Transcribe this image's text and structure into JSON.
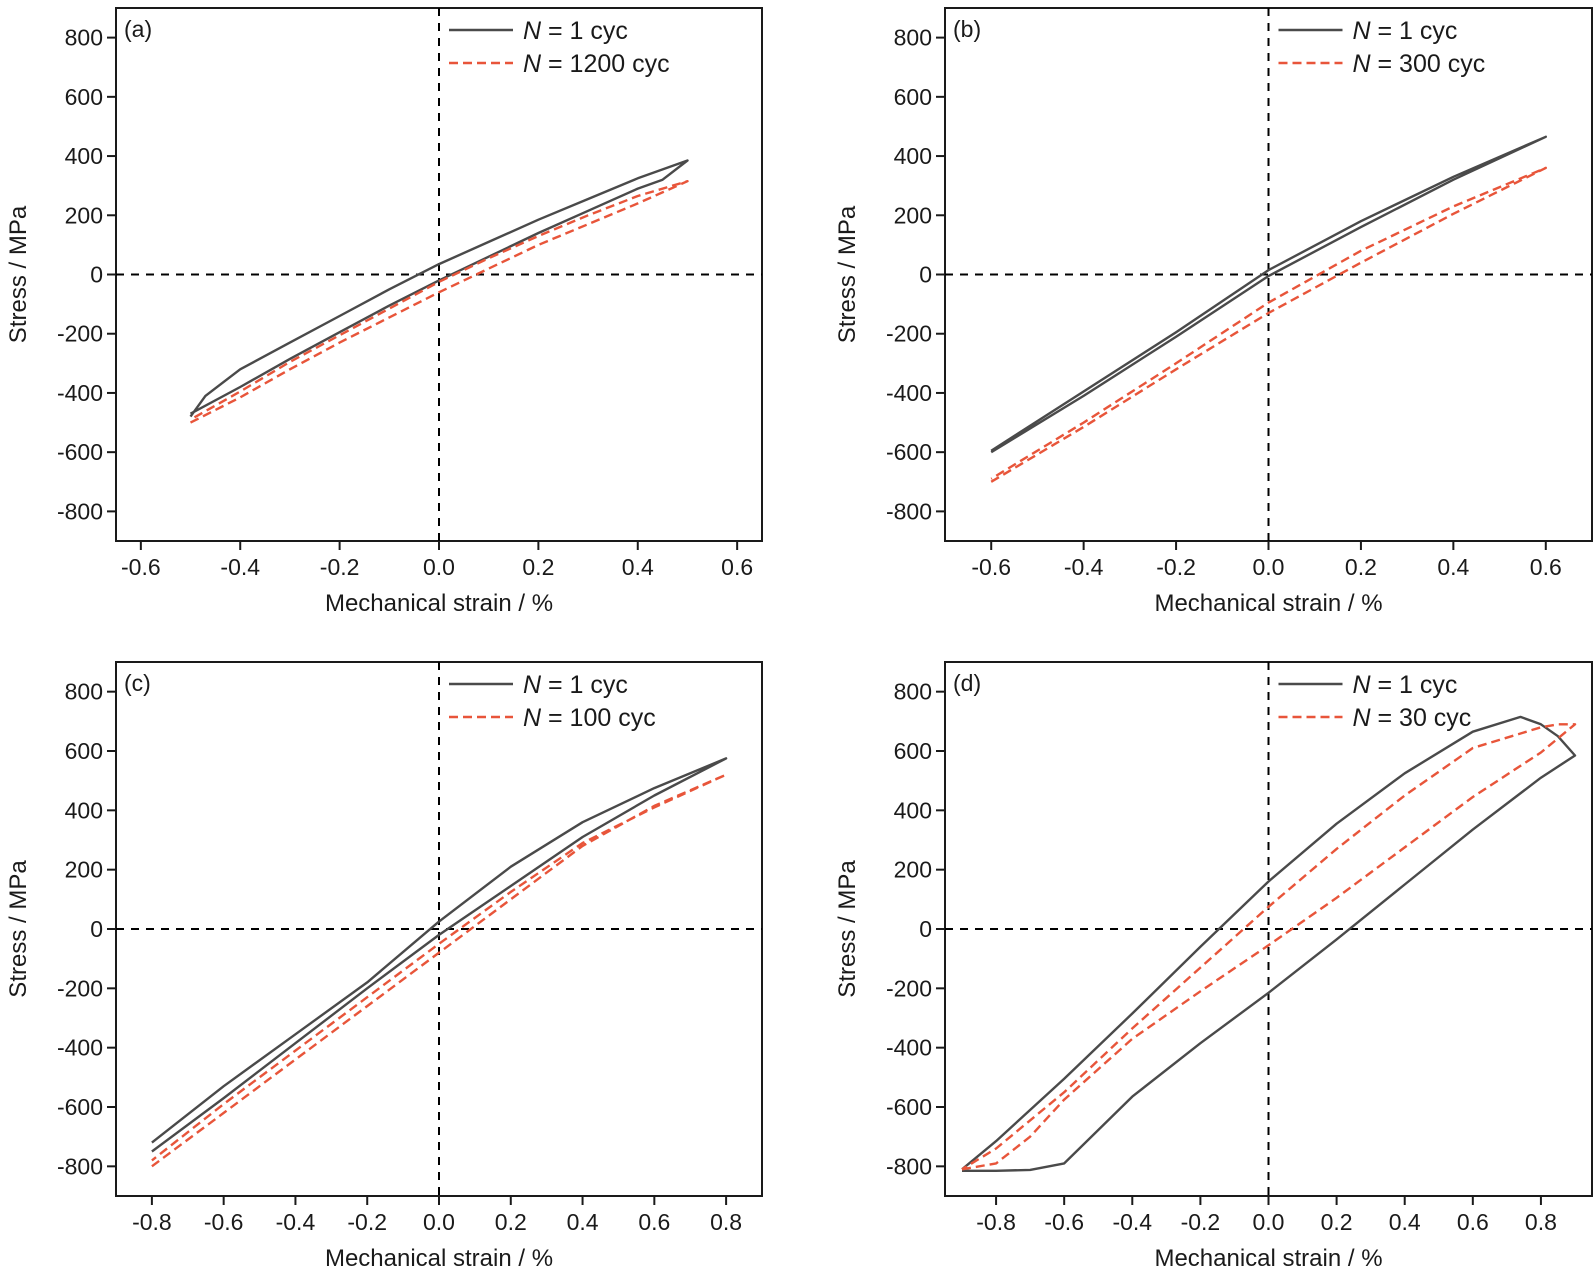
{
  "colors": {
    "cycle1": "#4a4a4a",
    "cycleN": "#e8553a",
    "axis": "#1a1a1a",
    "zero_line": "#000000"
  },
  "legend_symbol": "N",
  "chart_data": [
    {
      "type": "line",
      "panel_label": "(a)",
      "xlabel": "Mechanical strain / %",
      "ylabel": "Stress / MPa",
      "xlim": [
        -0.65,
        0.65
      ],
      "ylim": [
        -900,
        900
      ],
      "xticks": [
        "-0.6",
        "-0.4",
        "-0.2",
        "0.0",
        "0.2",
        "0.4",
        "0.6"
      ],
      "yticks": [
        "800",
        "600",
        "400",
        "200",
        "0",
        "-200",
        "-400",
        "-600",
        "-800"
      ],
      "grid": false,
      "legend": "top-right",
      "series": [
        {
          "name": "1 cyc",
          "style": "solid",
          "x": [
            -0.5,
            -0.4,
            -0.3,
            -0.2,
            -0.1,
            0.0,
            0.1,
            0.2,
            0.3,
            0.4,
            0.45,
            0.5,
            0.4,
            0.3,
            0.2,
            0.1,
            0.0,
            -0.1,
            -0.2,
            -0.3,
            -0.4,
            -0.47,
            -0.5
          ],
          "y": [
            -470,
            -380,
            -285,
            -195,
            -105,
            -20,
            60,
            140,
            215,
            290,
            320,
            385,
            325,
            255,
            185,
            110,
            35,
            -50,
            -140,
            -230,
            -320,
            -410,
            -480
          ]
        },
        {
          "name": "1200 cyc",
          "style": "dashed",
          "x": [
            -0.5,
            -0.4,
            -0.3,
            -0.2,
            -0.1,
            0.0,
            0.1,
            0.2,
            0.3,
            0.4,
            0.5,
            0.4,
            0.3,
            0.2,
            0.1,
            0.0,
            -0.1,
            -0.2,
            -0.3,
            -0.4,
            -0.5
          ],
          "y": [
            -500,
            -415,
            -320,
            -230,
            -145,
            -60,
            20,
            100,
            170,
            240,
            315,
            265,
            200,
            130,
            55,
            -25,
            -115,
            -205,
            -295,
            -395,
            -490
          ]
        }
      ]
    },
    {
      "type": "line",
      "panel_label": "(b)",
      "xlabel": "Mechanical strain / %",
      "ylabel": "Stress / MPa",
      "xlim": [
        -0.7,
        0.7
      ],
      "ylim": [
        -900,
        900
      ],
      "xticks": [
        "-0.6",
        "-0.4",
        "-0.2",
        "0.0",
        "0.2",
        "0.4",
        "0.6"
      ],
      "yticks": [
        "800",
        "600",
        "400",
        "200",
        "0",
        "-200",
        "-400",
        "-600",
        "-800"
      ],
      "grid": false,
      "legend": "top-right",
      "series": [
        {
          "name": "1 cyc",
          "style": "solid",
          "x": [
            -0.6,
            -0.4,
            -0.2,
            0.0,
            0.2,
            0.4,
            0.6,
            0.4,
            0.2,
            0.0,
            -0.2,
            -0.4,
            -0.6
          ],
          "y": [
            -600,
            -410,
            -210,
            -5,
            160,
            320,
            465,
            330,
            180,
            15,
            -195,
            -395,
            -595
          ]
        },
        {
          "name": "300 cyc",
          "style": "dashed",
          "x": [
            -0.6,
            -0.4,
            -0.2,
            0.0,
            0.2,
            0.4,
            0.6,
            0.4,
            0.2,
            0.0,
            -0.2,
            -0.4,
            -0.6
          ],
          "y": [
            -700,
            -515,
            -320,
            -130,
            40,
            205,
            360,
            230,
            80,
            -95,
            -300,
            -500,
            -690
          ]
        }
      ]
    },
    {
      "type": "line",
      "panel_label": "(c)",
      "xlabel": "Mechanical strain / %",
      "ylabel": "Stress / MPa",
      "xlim": [
        -0.9,
        0.9
      ],
      "ylim": [
        -900,
        900
      ],
      "xticks": [
        "-0.8",
        "-0.6",
        "-0.4",
        "-0.2",
        "0.0",
        "0.2",
        "0.4",
        "0.6",
        "0.8"
      ],
      "yticks": [
        "800",
        "600",
        "400",
        "200",
        "0",
        "-200",
        "-400",
        "-600",
        "-800"
      ],
      "grid": false,
      "legend": "top-right",
      "series": [
        {
          "name": "1 cyc",
          "style": "solid",
          "x": [
            -0.8,
            -0.6,
            -0.4,
            -0.2,
            0.0,
            0.2,
            0.4,
            0.6,
            0.8,
            0.6,
            0.4,
            0.2,
            0.0,
            -0.2,
            -0.4,
            -0.6,
            -0.8
          ],
          "y": [
            -750,
            -570,
            -385,
            -200,
            -20,
            145,
            310,
            450,
            575,
            475,
            360,
            210,
            25,
            -180,
            -355,
            -530,
            -720
          ]
        },
        {
          "name": "100 cyc",
          "style": "dashed",
          "x": [
            -0.8,
            -0.6,
            -0.4,
            -0.2,
            0.0,
            0.2,
            0.4,
            0.6,
            0.8,
            0.6,
            0.4,
            0.2,
            0.0,
            -0.2,
            -0.4,
            -0.6,
            -0.8
          ],
          "y": [
            -800,
            -620,
            -440,
            -260,
            -80,
            100,
            280,
            415,
            520,
            410,
            290,
            125,
            -50,
            -230,
            -410,
            -590,
            -780
          ]
        }
      ]
    },
    {
      "type": "line",
      "panel_label": "(d)",
      "xlabel": "Mechanical strain / %",
      "ylabel": "Stress / MPa",
      "xlim": [
        -0.95,
        0.95
      ],
      "ylim": [
        -900,
        900
      ],
      "xticks": [
        "-0.8",
        "-0.6",
        "-0.4",
        "-0.2",
        "0.0",
        "0.2",
        "0.4",
        "0.6",
        "0.8"
      ],
      "yticks": [
        "800",
        "600",
        "400",
        "200",
        "0",
        "-200",
        "-400",
        "-600",
        "-800"
      ],
      "grid": false,
      "legend": "top-right",
      "series": [
        {
          "name": "1 cyc",
          "style": "solid",
          "x": [
            -0.9,
            -0.8,
            -0.7,
            -0.6,
            -0.4,
            -0.2,
            0.0,
            0.2,
            0.4,
            0.6,
            0.8,
            0.9,
            0.85,
            0.8,
            0.74,
            0.6,
            0.4,
            0.2,
            0.0,
            -0.2,
            -0.4,
            -0.6,
            -0.8,
            -0.9
          ],
          "y": [
            -815,
            -815,
            -812,
            -790,
            -565,
            -385,
            -215,
            -35,
            150,
            335,
            510,
            585,
            650,
            690,
            715,
            665,
            525,
            355,
            160,
            -60,
            -285,
            -505,
            -715,
            -810
          ]
        },
        {
          "name": "30 cyc",
          "style": "dashed",
          "x": [
            -0.9,
            -0.8,
            -0.7,
            -0.6,
            -0.4,
            -0.2,
            0.0,
            0.2,
            0.4,
            0.6,
            0.8,
            0.9,
            0.85,
            0.8,
            0.6,
            0.4,
            0.2,
            0.0,
            -0.2,
            -0.4,
            -0.6,
            -0.8,
            -0.9
          ],
          "y": [
            -810,
            -790,
            -700,
            -575,
            -370,
            -210,
            -55,
            105,
            275,
            445,
            595,
            690,
            690,
            680,
            610,
            450,
            270,
            75,
            -130,
            -335,
            -550,
            -740,
            -810
          ]
        }
      ]
    }
  ]
}
